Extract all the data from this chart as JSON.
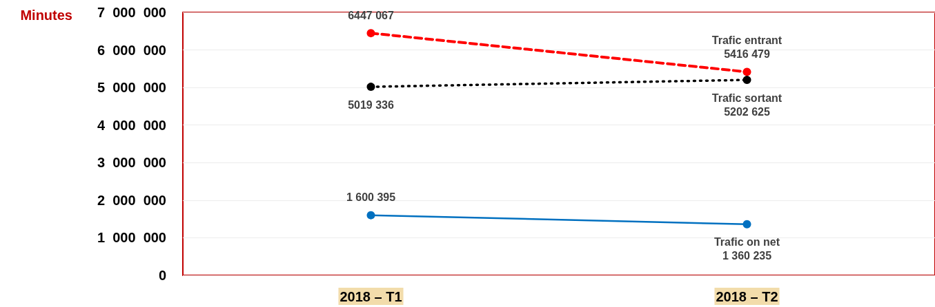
{
  "chart_data": {
    "type": "line",
    "ylabel": "Minutes",
    "categories": [
      "2018 – T1",
      "2018 – T2"
    ],
    "series": [
      {
        "name": "Trafic entrant",
        "color": "#ff0000",
        "line_style": "dashed",
        "values": [
          6447067,
          5416479
        ],
        "value_labels": [
          "6447 067",
          "5416 479"
        ]
      },
      {
        "name": "Trafic sortant",
        "color": "#000000",
        "line_style": "dotted",
        "values": [
          5019336,
          5202625
        ],
        "value_labels": [
          "5019 336",
          "5202 625"
        ]
      },
      {
        "name": "Trafic on net",
        "color": "#0070c0",
        "line_style": "solid",
        "values": [
          1600395,
          1360235
        ],
        "value_labels": [
          "1 600 395",
          "1 360 235"
        ]
      }
    ],
    "ylim": [
      0,
      7000000
    ],
    "yticks": [
      0,
      {
        "value": 1000000,
        "label": "1  000  000"
      },
      {
        "value": 2000000,
        "label": "2  000  000"
      },
      {
        "value": 3000000,
        "label": "3  000  000"
      },
      {
        "value": 4000000,
        "label": "4  000  000"
      },
      {
        "value": 5000000,
        "label": "5  000  000"
      },
      {
        "value": 6000000,
        "label": "6  000  000"
      },
      {
        "value": 7000000,
        "label": "7  000  000"
      }
    ],
    "grid": "y",
    "marker": "circle",
    "legend": false
  }
}
